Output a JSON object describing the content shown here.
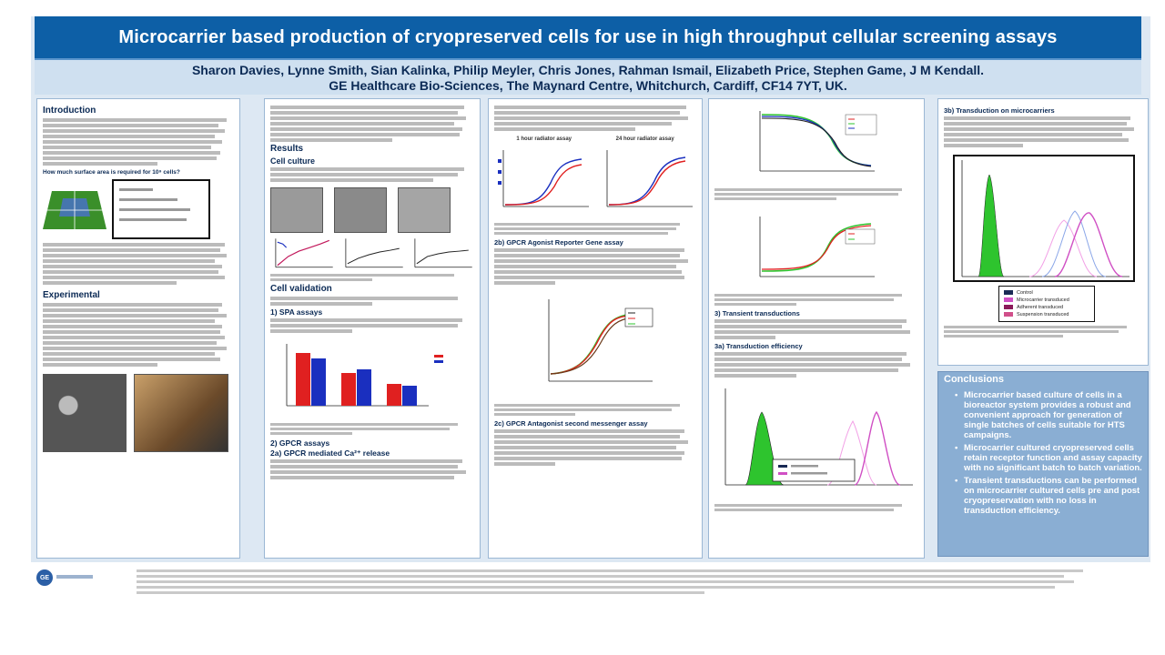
{
  "title": "Microcarrier based production of cryopreserved cells for use in high throughput cellular screening assays",
  "authors_line1": "Sharon Davies, Lynne Smith, Sian Kalinka, Philip Meyler, Chris Jones, Rahman Ismail, Elizabeth Price, Stephen Game, J M Kendall.",
  "authors_line2": "GE Healthcare Bio-Sciences, The Maynard Centre, Whitchurch, Cardiff, CF14 7YT, UK.",
  "col1": {
    "intro_heading": "Introduction",
    "surface_question": "How much surface area is required for 10⁹ cells?",
    "experimental_heading": "Experimental"
  },
  "col2": {
    "results_heading": "Results",
    "cell_culture_heading": "Cell culture",
    "cell_validation_heading": "Cell validation",
    "spa_heading": "1) SPA assays",
    "gpcr_assays_heading": "2) GPCR assays",
    "calcium_heading": "2a) GPCR mediated Ca²⁺ release"
  },
  "col3": {
    "panel_a_label": "1 hour radiator assay",
    "panel_b_label": "24 hour radiator assay",
    "reporter_heading": "2b) GPCR Agonist Reporter Gene assay",
    "antagonist_heading": "2c) GPCR Antagonist second messenger assay"
  },
  "col4": {
    "transient_heading": "3) Transient transductions",
    "efficiency_heading": "3a) Transduction efficiency"
  },
  "col5": {
    "heading": "3b) Transduction on microcarriers",
    "legend": [
      "Control",
      "Microcarrier transduced",
      "Adherent transduced",
      "Suspension transduced"
    ]
  },
  "conclusions": {
    "heading": "Conclusions",
    "items": [
      "Microcarrier based culture of cells in a bioreactor system provides a robust and convenient approach for generation of single batches of cells suitable for HTS campaigns.",
      "Microcarrier cultured cryopreserved cells retain receptor function and assay capacity with no significant batch to batch variation.",
      "Transient transductions can be performed on microcarrier cultured cells pre and post cryopreservation with no loss in transduction efficiency."
    ]
  },
  "colors": {
    "title_bg": "#0d5fa6",
    "authors_bg": "#cfe0f0",
    "conclusions_bg": "#8aaed3",
    "series_red": "#e02020",
    "series_blue": "#1a2fbf",
    "series_green": "#2ec42e",
    "series_pink": "#d04fc4"
  }
}
